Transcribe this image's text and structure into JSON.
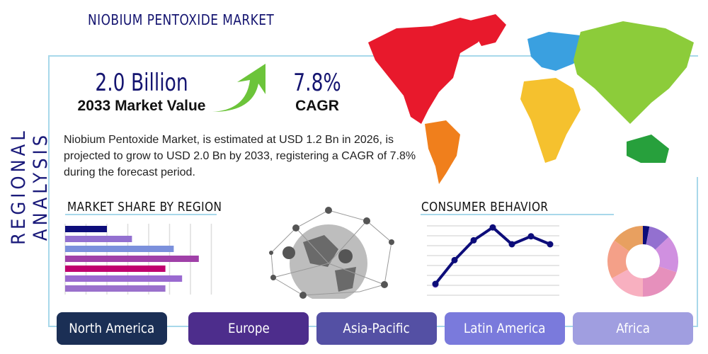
{
  "title": "NIOBIUM PENTOXIDE MARKET",
  "side_title": "REGIONAL ANALYSIS",
  "market_value": {
    "value": "2.0 Billion",
    "label": "2033 Market Value"
  },
  "cagr": {
    "value": "7.8%",
    "label": "CAGR"
  },
  "description": "Niobium Pentoxide Market, is estimated at USD 1.2 Bn in 2026, is projected to grow to USD 2.0 Bn by 2033, registering a CAGR of 7.8% during the forecast period.",
  "market_share_title": "MARKET SHARE BY REGION",
  "consumer_behavior_title": "CONSUMER BEHAVIOR",
  "regions": [
    "North America",
    "Europe",
    "Asia-Pacific",
    "Latin America",
    "Africa"
  ],
  "region_colors": [
    "#1b2f55",
    "#4d2d8c",
    "#5450a4",
    "#7a7adc",
    "#a09ee0"
  ],
  "chart_data": [
    {
      "type": "bar",
      "orientation": "horizontal",
      "values": [
        2,
        3.2,
        5.2,
        6.4,
        4.8,
        5.6,
        4.8
      ],
      "colors": [
        "#0d0d7a",
        "#9370d0",
        "#7b90dc",
        "#a040a8",
        "#c0006e",
        "#9a6ad0",
        "#9a70cc"
      ],
      "grid": true
    },
    {
      "type": "line",
      "values": [
        1,
        3.4,
        5.4,
        6.7,
        5,
        5.8,
        5
      ],
      "color": "#0d0d7a",
      "grid": true
    },
    {
      "type": "pie",
      "donut": true,
      "values": [
        3,
        10,
        17,
        20,
        17,
        18,
        15
      ],
      "colors": [
        "#0d0d7a",
        "#9370d0",
        "#d090e0",
        "#e690bc",
        "#f8b0c0",
        "#f4a088",
        "#e8a060"
      ]
    }
  ]
}
